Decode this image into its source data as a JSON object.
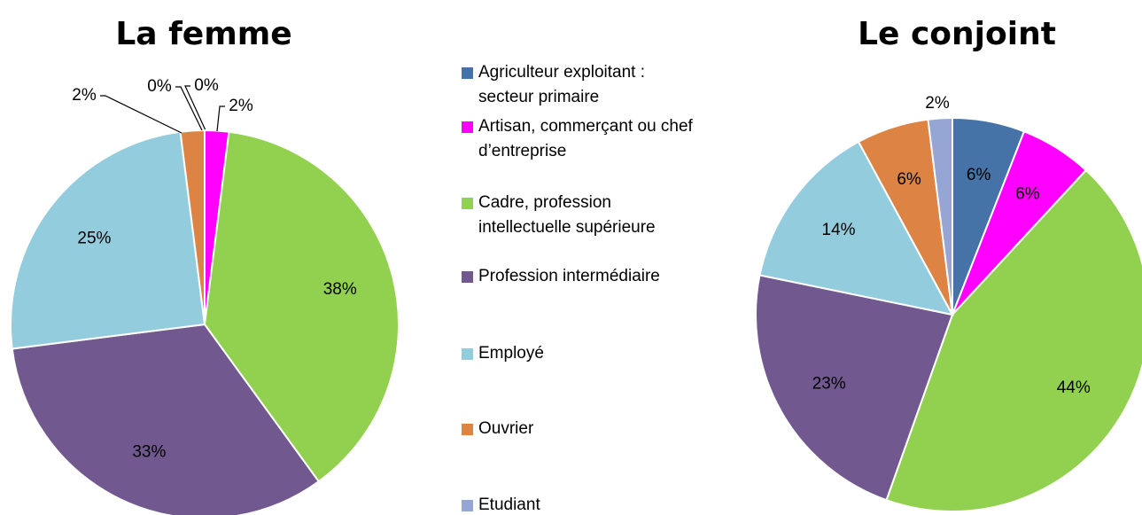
{
  "chart_data": [
    {
      "type": "pie",
      "title": "La femme",
      "categories": [
        "Agriculteur exploitant : secteur primaire",
        "Artisan, commerçant ou chef d’entreprise",
        "Cadre, profession intellectuelle supérieure",
        "Profession intermédiaire",
        "Employé",
        "Ouvrier",
        "Etudiant"
      ],
      "values": [
        0,
        2,
        38,
        33,
        25,
        2,
        0
      ],
      "value_labels": [
        "0%",
        "2%",
        "38%",
        "33%",
        "25%",
        "2%",
        "0%"
      ],
      "colors": [
        "#4572a7",
        "#ff00ff",
        "#92d050",
        "#71588f",
        "#93cddd",
        "#dd8444",
        "#95a6d4"
      ]
    },
    {
      "type": "pie",
      "title": "Le conjoint",
      "categories": [
        "Agriculteur exploitant : secteur primaire",
        "Artisan, commerçant ou chef d’entreprise",
        "Cadre, profession intellectuelle supérieure",
        "Profession intermédiaire",
        "Employé",
        "Ouvrier",
        "Etudiant"
      ],
      "values": [
        6,
        6,
        44,
        23,
        14,
        6,
        2
      ],
      "value_labels": [
        "6%",
        "6%",
        "44%",
        "23%",
        "14%",
        "6%",
        "2%"
      ],
      "colors": [
        "#4572a7",
        "#ff00ff",
        "#92d050",
        "#71588f",
        "#93cddd",
        "#dd8444",
        "#95a6d4"
      ]
    }
  ]
}
